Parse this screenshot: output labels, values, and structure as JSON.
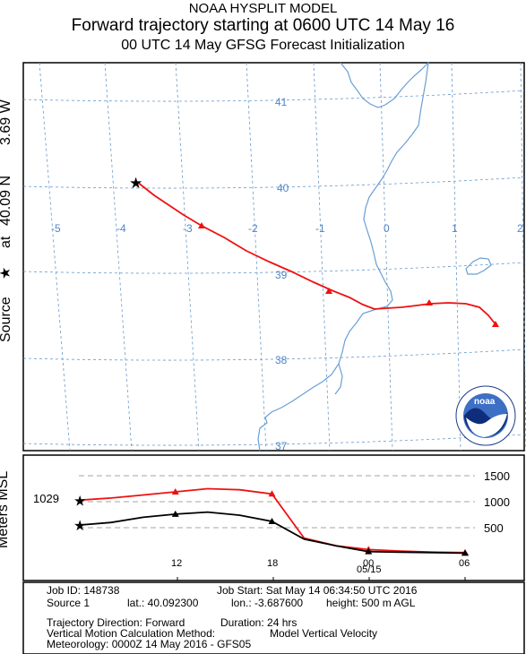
{
  "header": {
    "title": "NOAA HYSPLIT MODEL",
    "subtitle": "Forward trajectory starting at 0600 UTC 14 May 16",
    "init": "00 UTC 14 May    GFSG  Forecast Initialization"
  },
  "side_label": {
    "source": "Source",
    "at": "at",
    "lat": "40.09 N",
    "lon": "3.69 W"
  },
  "map": {
    "lon_labels": [
      "-5",
      "-4",
      "-3",
      "-2",
      "-1",
      "0",
      "1",
      "2"
    ],
    "lat_labels": [
      "41",
      "40",
      "39",
      "38",
      "37"
    ],
    "logo_text": "noaa",
    "colors": {
      "trajectory": "#ee1111",
      "grid": "#6699cc",
      "coast": "#6a9fd4"
    }
  },
  "vertical": {
    "ylabel": "Meters MSL",
    "start_label": "1029",
    "y_ticks": [
      "1500",
      "1000",
      "500"
    ],
    "x_ticks": [
      "12",
      "18",
      "00",
      "06"
    ],
    "date_label": "05/15"
  },
  "info": {
    "job_id": "Job ID: 148738",
    "job_start": "Job Start: Sat May 14 06:34:50 UTC 2016",
    "source": "Source 1",
    "lat": "lat.: 40.092300",
    "lon": "lon.: -3.687600",
    "height": "height: 500 m AGL",
    "direction": "Trajectory Direction: Forward",
    "duration": "Duration: 24 hrs",
    "vmethod": "Vertical Motion Calculation Method:",
    "vmethod_value": "Model Vertical Velocity",
    "meteorology": "Meteorology: 0000Z 14 May 2016 - GFS05"
  },
  "chart_data": {
    "type": "line",
    "title": "",
    "xlabel": "",
    "ylabel": "Meters MSL",
    "x": [
      "06",
      "08",
      "10",
      "12",
      "14",
      "16",
      "18",
      "20",
      "22",
      "00",
      "02",
      "04",
      "06"
    ],
    "series": [
      {
        "name": "",
        "values": [
          1029,
          1070,
          1130,
          1190,
          1250,
          1230,
          1150,
          300,
          150,
          80,
          50,
          30,
          20
        ]
      },
      {
        "name": "",
        "values": [
          550,
          600,
          700,
          760,
          800,
          740,
          620,
          280,
          150,
          40,
          30,
          20,
          10
        ]
      }
    ],
    "ylim": [
      0,
      1600
    ]
  }
}
